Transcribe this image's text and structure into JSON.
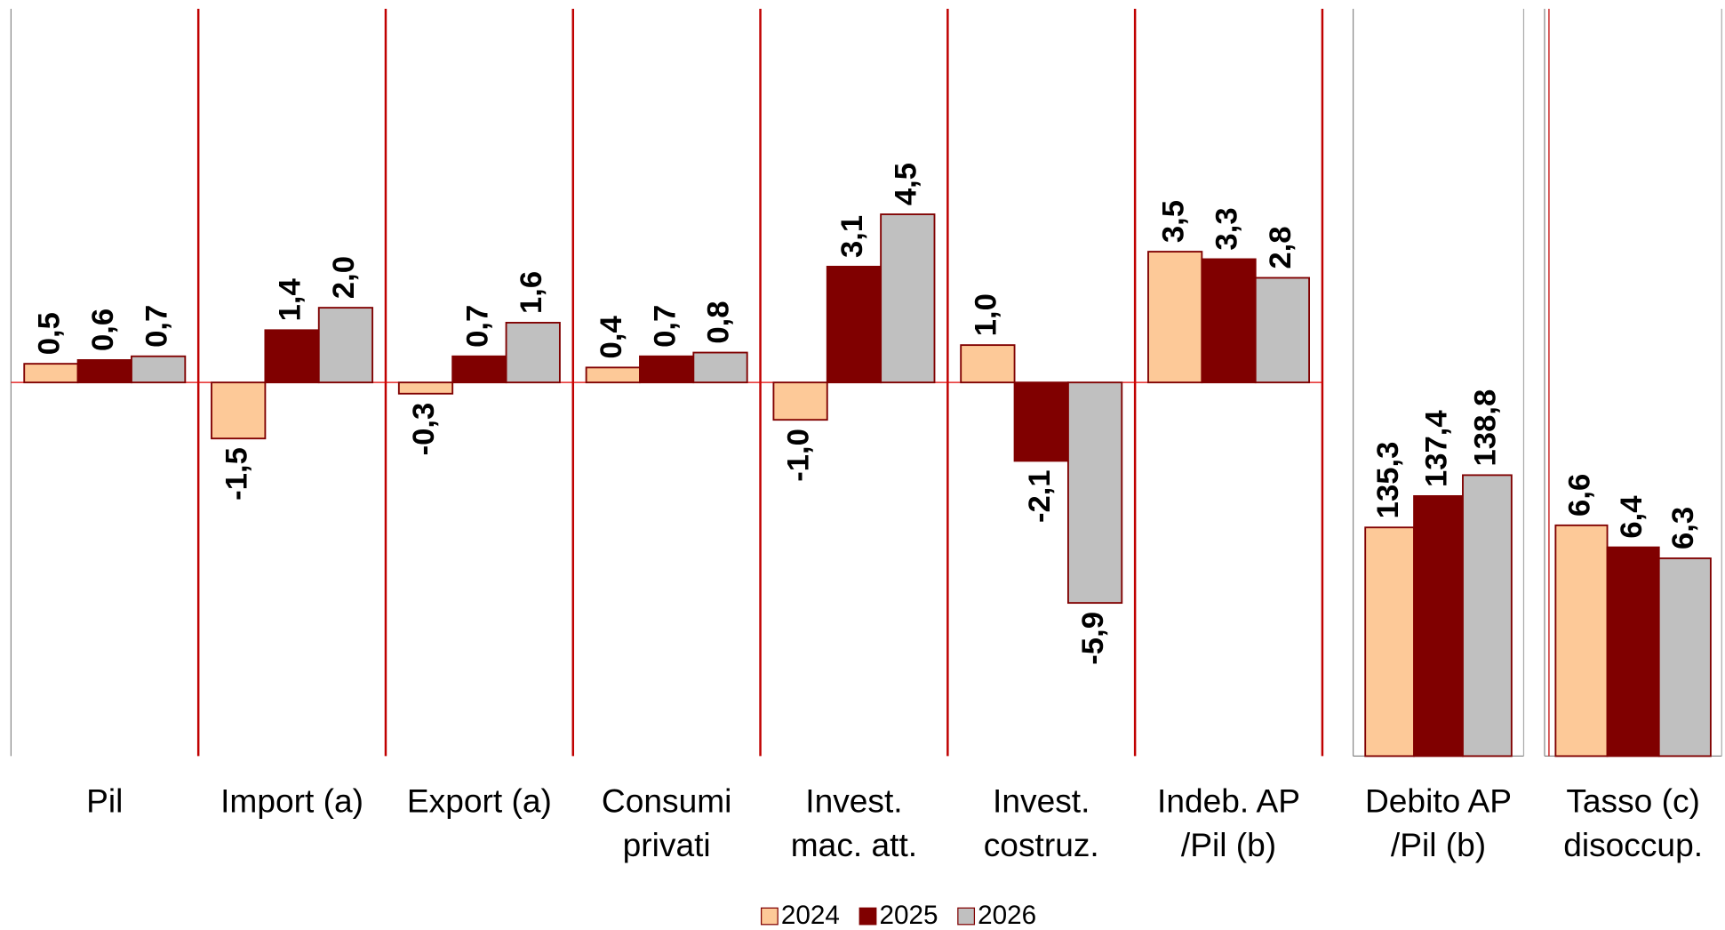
{
  "chart_data": [
    {
      "type": "bar",
      "categories": [
        [
          "Pil"
        ],
        [
          "Import (a)"
        ],
        [
          "Export (a)"
        ],
        [
          "Consumi",
          "privati"
        ],
        [
          "Invest.",
          "mac. att."
        ],
        [
          "Invest.",
          "costruz."
        ],
        [
          "Indeb. AP",
          "/Pil (b)"
        ]
      ],
      "series": [
        {
          "name": "2024",
          "color": "#fdc998",
          "values": [
            0.5,
            -1.5,
            -0.3,
            0.4,
            -1.0,
            1.0,
            3.5
          ],
          "value_labels": [
            "0,5",
            "-1,5",
            "-0,3",
            "0,4",
            "-1,0",
            "1,0",
            "3,5"
          ]
        },
        {
          "name": "2025",
          "color": "#800000",
          "values": [
            0.6,
            1.4,
            0.7,
            0.7,
            3.1,
            -2.1,
            3.3
          ],
          "value_labels": [
            "0,6",
            "1,4",
            "0,7",
            "0,7",
            "3,1",
            "-2,1",
            "3,3"
          ]
        },
        {
          "name": "2026",
          "color": "#c0c0c0",
          "values": [
            0.7,
            2.0,
            1.6,
            0.8,
            4.5,
            -5.9,
            2.8
          ],
          "value_labels": [
            "0,7",
            "2,0",
            "1,6",
            "0,8",
            "4,5",
            "-5,9",
            "2,8"
          ]
        }
      ],
      "ylim": [
        -10,
        10
      ],
      "legend": "bottom"
    },
    {
      "type": "bar",
      "categories": [
        [
          "Debito AP",
          "/Pil (b)"
        ]
      ],
      "series": [
        {
          "color": "#fdc998",
          "values": [
            135.3
          ],
          "value_labels": [
            "135,3"
          ]
        },
        {
          "color": "#800000",
          "values": [
            137.4
          ],
          "value_labels": [
            "137,4"
          ]
        },
        {
          "color": "#c0c0c0",
          "values": [
            138.8
          ],
          "value_labels": [
            "138,8"
          ]
        }
      ],
      "ylim": [
        120,
        170
      ]
    },
    {
      "type": "bar",
      "categories": [
        [
          "Tasso (c)",
          "disoccup."
        ]
      ],
      "series": [
        {
          "color": "#fdc998",
          "values": [
            6.6
          ],
          "value_labels": [
            "6,6"
          ]
        },
        {
          "color": "#800000",
          "values": [
            6.4
          ],
          "value_labels": [
            "6,4"
          ]
        },
        {
          "color": "#c0c0c0",
          "values": [
            6.3
          ],
          "value_labels": [
            "6,3"
          ]
        }
      ],
      "ylim": [
        4.5,
        11.3
      ]
    }
  ]
}
